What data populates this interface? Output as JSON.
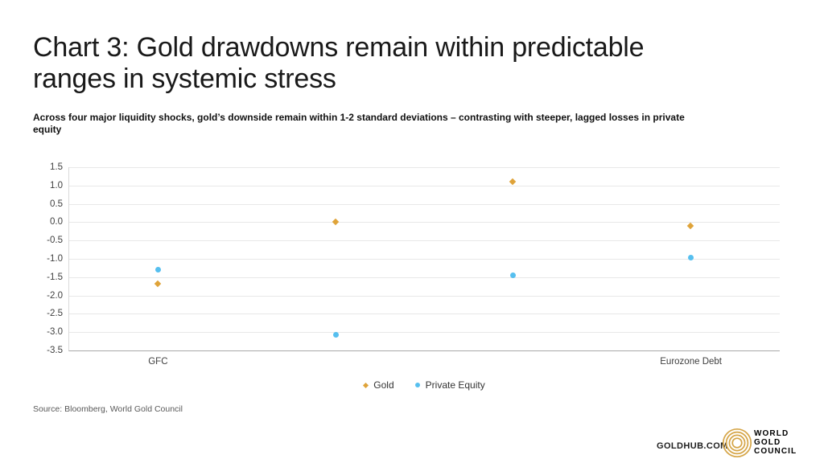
{
  "header": {
    "title_lines": [
      "Chart 3: Gold drawdowns remain within predictable",
      "ranges in systemic stress"
    ],
    "subtitle_lines": [
      "Across four major liquidity shocks, gold’s downside remain within 1-2 standard deviations – contrasting with steeper, lagged losses in private",
      "equity"
    ]
  },
  "chart_data": {
    "type": "scatter",
    "categories": [
      "GFC",
      "",
      "",
      "Eurozone Debt"
    ],
    "series": [
      {
        "name": "Gold",
        "marker": "diamond",
        "color": "#DFA339",
        "values": [
          -1.68,
          0.0,
          1.1,
          -0.12
        ]
      },
      {
        "name": "Private Equity",
        "marker": "circle",
        "color": "#56BFEF",
        "values": [
          -1.3,
          -3.08,
          -1.45,
          -0.97
        ]
      }
    ],
    "ylim": [
      -3.5,
      1.5
    ],
    "ytick_step": 0.5,
    "grid": true,
    "legend_position": "bottom-center",
    "title": "Chart 3: Gold drawdowns remain within predictable ranges in systemic stress",
    "xlabel": "",
    "ylabel": ""
  },
  "footer": {
    "source": "Source: Bloomberg, World Gold Council",
    "goldhub": "GOLDHUB.COM",
    "logo_lines": [
      "WORLD",
      "GOLD",
      "COUNCIL"
    ],
    "logo_color": "#D5A547"
  }
}
